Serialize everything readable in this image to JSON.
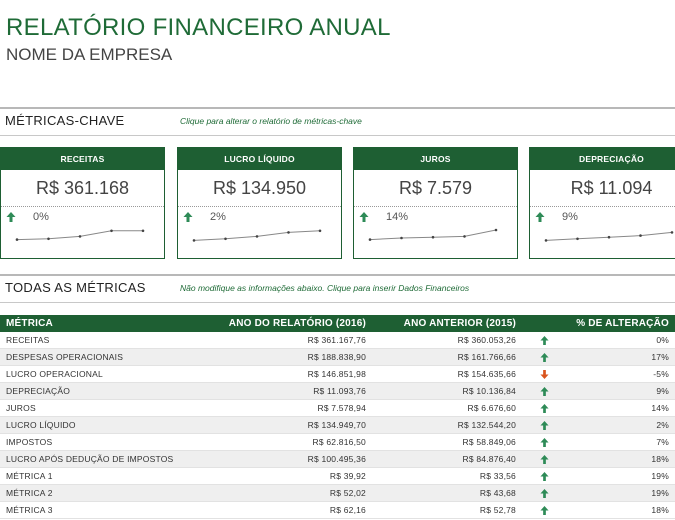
{
  "header": {
    "title": "RELATÓRIO FINANCEIRO ANUAL",
    "subtitle": "NOME DA EMPRESA"
  },
  "kpi_section": {
    "label": "MÉTRICAS-CHAVE",
    "hint": "Clique para alterar o relatório de métricas-chave"
  },
  "kpis": [
    {
      "title": "RECEITAS",
      "value": "R$ 361.168",
      "pct": "0%",
      "trend": "up",
      "spark": [
        0.15,
        0.2,
        0.35,
        0.7,
        0.7
      ]
    },
    {
      "title": "LUCRO LÍQUIDO",
      "value": "R$ 134.950",
      "pct": "2%",
      "trend": "up",
      "spark": [
        0.1,
        0.2,
        0.35,
        0.6,
        0.7
      ]
    },
    {
      "title": "JUROS",
      "value": "R$ 7.579",
      "pct": "14%",
      "trend": "up",
      "spark": [
        0.15,
        0.25,
        0.3,
        0.35,
        0.75
      ]
    },
    {
      "title": "DEPRECIAÇÃO",
      "value": "R$ 11.094",
      "pct": "9%",
      "trend": "up",
      "spark": [
        0.1,
        0.2,
        0.3,
        0.4,
        0.6
      ]
    }
  ],
  "all_section": {
    "label": "TODAS AS MÉTRICAS",
    "hint": "Não modifique as informações abaixo. Clique para inserir Dados Financeiros"
  },
  "table": {
    "headers": {
      "metric": "MÉTRICA",
      "report_year": "ANO DO RELATÓRIO (2016)",
      "prior_year": "ANO ANTERIOR (2015)",
      "change": "% DE ALTERAÇÃO"
    },
    "rows": [
      {
        "metric": "RECEITAS",
        "report": "R$ 361.167,76",
        "prior": "R$ 360.053,26",
        "trend": "up",
        "change": "0%"
      },
      {
        "metric": "DESPESAS OPERACIONAIS",
        "report": "R$ 188.838,90",
        "prior": "R$ 161.766,66",
        "trend": "up",
        "change": "17%"
      },
      {
        "metric": "LUCRO OPERACIONAL",
        "report": "R$ 146.851,98",
        "prior": "R$ 154.635,66",
        "trend": "down",
        "change": "-5%"
      },
      {
        "metric": "DEPRECIAÇÃO",
        "report": "R$ 11.093,76",
        "prior": "R$ 10.136,84",
        "trend": "up",
        "change": "9%"
      },
      {
        "metric": "JUROS",
        "report": "R$ 7.578,94",
        "prior": "R$ 6.676,60",
        "trend": "up",
        "change": "14%"
      },
      {
        "metric": "LUCRO LÍQUIDO",
        "report": "R$ 134.949,70",
        "prior": "R$ 132.544,20",
        "trend": "up",
        "change": "2%"
      },
      {
        "metric": "IMPOSTOS",
        "report": "R$ 62.816,50",
        "prior": "R$ 58.849,06",
        "trend": "up",
        "change": "7%"
      },
      {
        "metric": "LUCRO APÓS DEDUÇÃO DE IMPOSTOS",
        "report": "R$ 100.495,36",
        "prior": "R$ 84.876,40",
        "trend": "up",
        "change": "18%"
      },
      {
        "metric": "MÉTRICA 1",
        "report": "R$ 39,92",
        "prior": "R$ 33,56",
        "trend": "up",
        "change": "19%"
      },
      {
        "metric": "MÉTRICA 2",
        "report": "R$ 52,02",
        "prior": "R$ 43,68",
        "trend": "up",
        "change": "19%"
      },
      {
        "metric": "MÉTRICA 3",
        "report": "R$ 62,16",
        "prior": "R$ 52,78",
        "trend": "up",
        "change": "18%"
      }
    ]
  },
  "colors": {
    "brand_green": "#1e5f33",
    "up_arrow": "#2e8b57",
    "down_arrow": "#d9541e"
  },
  "icons": {
    "up": "arrow-up-icon",
    "down": "arrow-down-icon"
  }
}
